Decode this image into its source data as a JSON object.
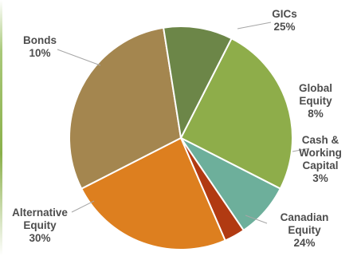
{
  "chart_data": {
    "type": "pie",
    "title": "",
    "slices": [
      {
        "name": "GICs",
        "label": "GICs",
        "value": 25,
        "value_label": "25%",
        "color": "#8ead4a"
      },
      {
        "name": "Global Equity",
        "label": "Global\nEquity",
        "value": 8,
        "value_label": "8%",
        "color": "#6daf9b"
      },
      {
        "name": "Cash & Working Capital",
        "label": "Cash &\nWorking\nCapital",
        "value": 3,
        "value_label": "3%",
        "color": "#b13a12"
      },
      {
        "name": "Canadian Equity",
        "label": "Canadian\nEquity",
        "value": 24,
        "value_label": "24%",
        "color": "#dd7f1f"
      },
      {
        "name": "Alternative Equity",
        "label": "Alternative\nEquity",
        "value": 30,
        "value_label": "30%",
        "color": "#a4864f"
      },
      {
        "name": "Bonds",
        "label": "Bonds",
        "value": 10,
        "value_label": "10%",
        "color": "#6c8648"
      }
    ]
  }
}
